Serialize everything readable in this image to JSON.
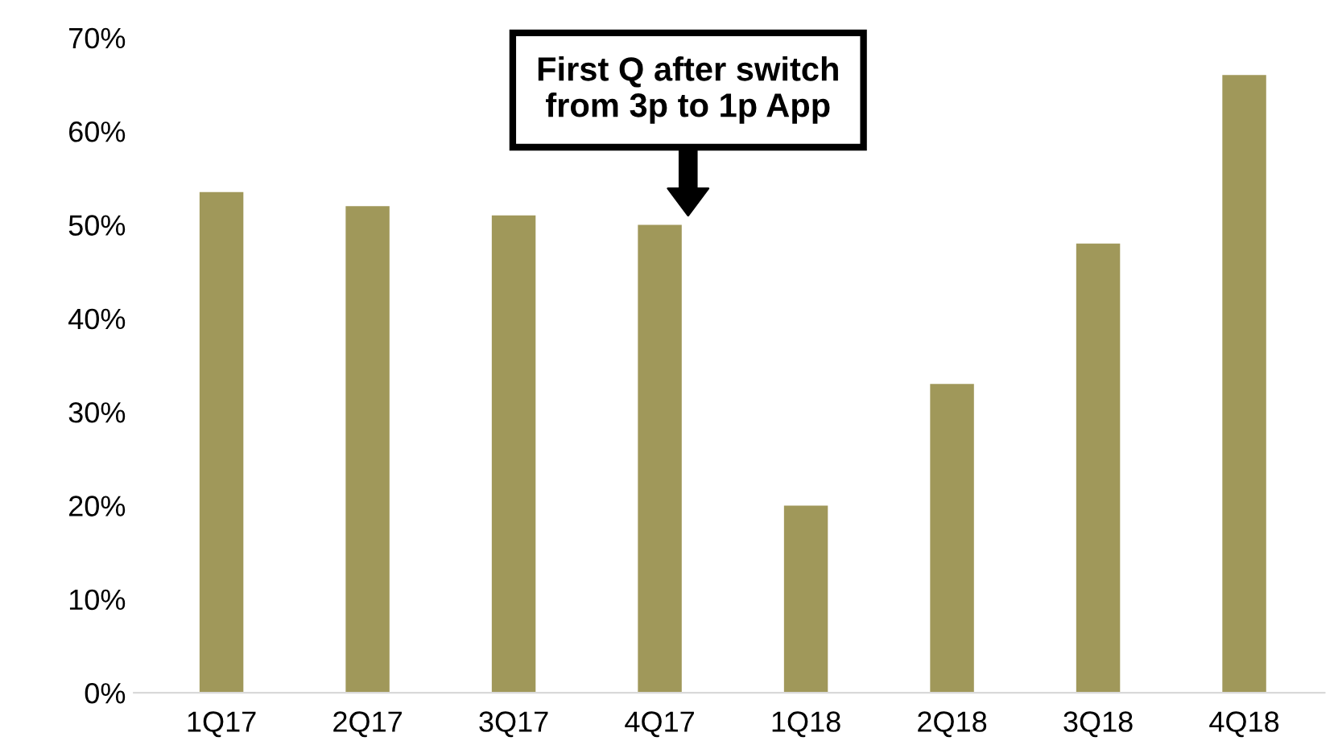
{
  "chart_data": {
    "type": "bar",
    "categories": [
      "1Q17",
      "2Q17",
      "3Q17",
      "4Q17",
      "1Q18",
      "2Q18",
      "3Q18",
      "4Q18"
    ],
    "values": [
      53.5,
      52,
      51,
      50,
      20,
      33,
      48,
      66
    ],
    "color": "#a0985a",
    "ylim": [
      0,
      70
    ],
    "yticks": [
      {
        "value": 0,
        "label": "0%"
      },
      {
        "value": 10,
        "label": "10%"
      },
      {
        "value": 20,
        "label": "20%"
      },
      {
        "value": 30,
        "label": "30%"
      },
      {
        "value": 40,
        "label": "40%"
      },
      {
        "value": 50,
        "label": "50%"
      },
      {
        "value": 60,
        "label": "60%"
      },
      {
        "value": 70,
        "label": "70%"
      }
    ],
    "grid": false,
    "annotations": [
      "First Q after switch\nfrom 3p to 1p App"
    ]
  }
}
